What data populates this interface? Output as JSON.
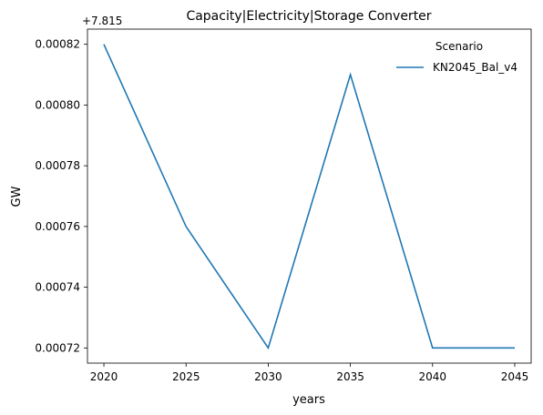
{
  "chart_data": {
    "type": "line",
    "title": "Capacity|Electricity|Storage Converter",
    "xlabel": "years",
    "ylabel": "GW",
    "offset_text": "+7.815",
    "x": [
      2020,
      2025,
      2030,
      2035,
      2040,
      2045
    ],
    "xticks": [
      "2020",
      "2025",
      "2030",
      "2035",
      "2040",
      "2045"
    ],
    "yticks": [
      0.00072,
      0.00074,
      0.00076,
      0.00078,
      0.0008,
      0.00082
    ],
    "ytick_labels": [
      "0.00072",
      "0.00074",
      "0.00076",
      "0.00078",
      "0.00080",
      "0.00082"
    ],
    "xlim": [
      2019,
      2046
    ],
    "ylim": [
      0.000715,
      0.000825
    ],
    "legend": {
      "title": "Scenario",
      "placement": "top-right"
    },
    "series": [
      {
        "name": "KN2045_Bal_v4",
        "color": "#1f77b4",
        "values": [
          0.00082,
          0.00076,
          0.00072,
          0.00081,
          0.00072,
          0.00072
        ]
      }
    ],
    "grid": false
  }
}
